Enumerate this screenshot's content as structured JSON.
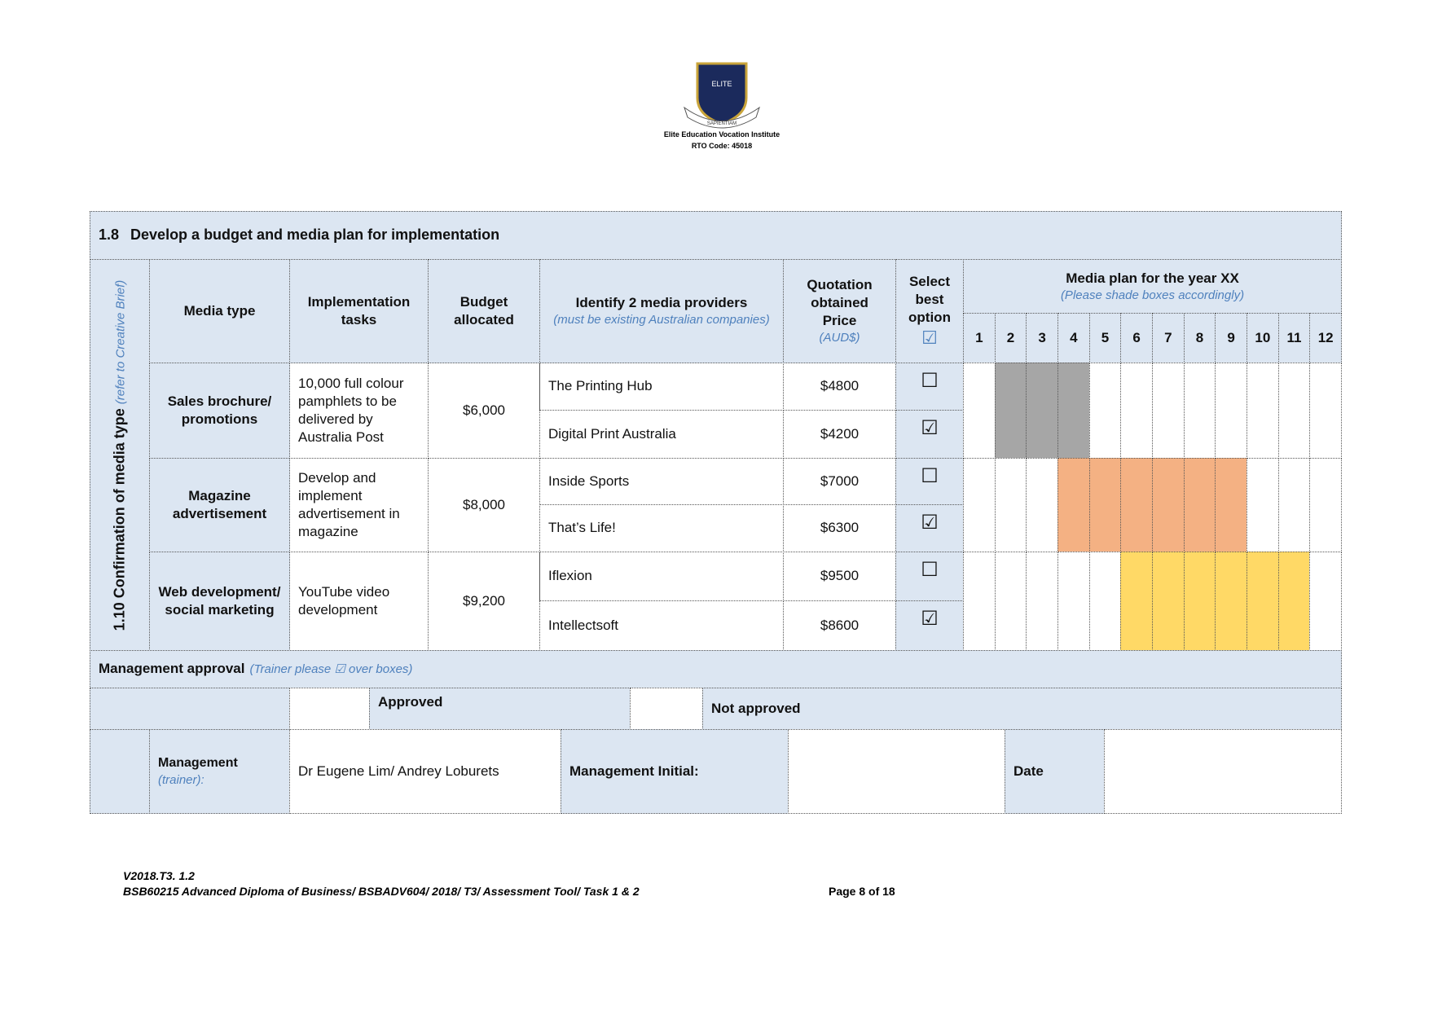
{
  "header": {
    "institute": "Elite Education Vocation Institute",
    "rto": "RTO Code: 45018",
    "logo_text": "ELITE",
    "logo_motto": "SAPIENTIAM"
  },
  "section": {
    "number": "1.8",
    "title": "Develop a budget and media plan for implementation"
  },
  "side_label": {
    "text": "1.10 Confirmation of media type",
    "note": "(refer to Creative Brief)"
  },
  "columns": {
    "media_type": "Media type",
    "tasks": "Implementation tasks",
    "budget": "Budget allocated",
    "providers": "Identify 2 media providers",
    "providers_note": "(must be existing Australian companies)",
    "quotation": "Quotation obtained Price",
    "quotation_note": "(AUD$)",
    "select": "Select best option",
    "select_icon": "☑",
    "plan": "Media plan for the year XX",
    "plan_note": "(Please shade boxes accordingly)",
    "months": [
      1,
      2,
      3,
      4,
      5,
      6,
      7,
      8,
      9,
      10,
      11,
      12
    ]
  },
  "rows": [
    {
      "media_type": "Sales brochure/ promotions",
      "task": "10,000 full colour pamphlets to be delivered by Australia Post",
      "budget": "$6,000",
      "providers": [
        {
          "name": "The Printing Hub",
          "price": "$4800",
          "select": "☐"
        },
        {
          "name": "Digital Print Australia",
          "price": "$4200",
          "select": "☑"
        }
      ]
    },
    {
      "media_type": "Magazine advertisement",
      "task": "Develop and implement advertisement in magazine",
      "budget": "$8,000",
      "providers": [
        {
          "name": "Inside Sports",
          "price": "$7000",
          "select": "☐"
        },
        {
          "name": "That’s Life!",
          "price": "$6300",
          "select": "☑"
        }
      ]
    },
    {
      "media_type": "Web development/ social marketing",
      "task": "YouTube video development",
      "budget": "$9,200",
      "providers": [
        {
          "name": "Iflexion",
          "price": "$9500",
          "select": "☐"
        },
        {
          "name": "Intellectsoft",
          "price": "$8600",
          "select": "☑"
        }
      ]
    }
  ],
  "approval": {
    "label": "Management approval",
    "note": "(Trainer please ☑ over boxes)",
    "approved": "Approved",
    "not_approved": "Not approved"
  },
  "signoff": {
    "management": "Management",
    "management_note": "(trainer):",
    "names": "Dr Eugene Lim/ Andrey Loburets",
    "initial": "Management Initial:",
    "date": "Date"
  },
  "footer": {
    "version": "V2018.T3. 1.2",
    "course": "BSB60215 Advanced Diploma of Business/ BSBADV604/ 2018/ T3/ Assessment Tool/ Task 1 & 2",
    "page": "Page 8 of 18"
  }
}
